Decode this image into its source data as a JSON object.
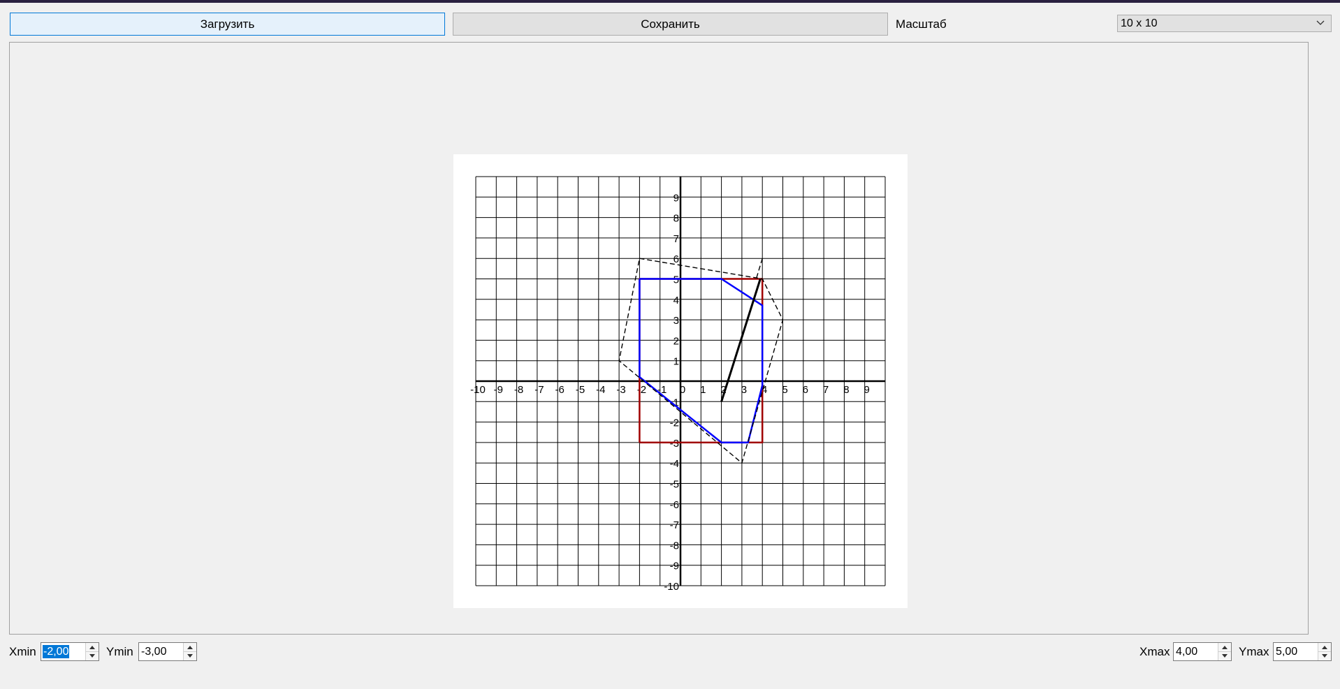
{
  "toolbar": {
    "load_label": "Загрузить",
    "save_label": "Сохранить",
    "scale_label": "Масштаб",
    "scale_value": "10 x 10"
  },
  "bottom": {
    "xmin_label": "Xmin",
    "xmin_value": "-2,00",
    "ymin_label": "Ymin",
    "ymin_value": "-3,00",
    "xmax_label": "Xmax",
    "xmax_value": "4,00",
    "ymax_label": "Ymax",
    "ymax_value": "5,00"
  },
  "chart_data": {
    "type": "line",
    "xlim": [
      -10,
      10
    ],
    "ylim": [
      -10,
      10
    ],
    "grid": true,
    "x_tick_labels": [
      "-10",
      "-9",
      "-8",
      "-7",
      "-6",
      "-5",
      "-4",
      "-3",
      "-2",
      "-1",
      "0",
      "1",
      "2",
      "3",
      "4",
      "5",
      "6",
      "7",
      "8",
      "9"
    ],
    "y_tick_labels": [
      "9",
      "8",
      "7",
      "6",
      "5",
      "4",
      "3",
      "2",
      "1",
      "-1",
      "-2",
      "-3",
      "-4",
      "-5",
      "-6",
      "-7",
      "-8",
      "-9",
      "-10"
    ],
    "series": [
      {
        "style": "solid",
        "color": "#a00000",
        "points": [
          [
            -2,
            -3
          ],
          [
            4,
            -3
          ],
          [
            4,
            5
          ],
          [
            -2,
            5
          ],
          [
            -2,
            -3
          ]
        ]
      },
      {
        "style": "solid",
        "color": "#0000ff",
        "points": [
          [
            -2,
            5
          ],
          [
            2,
            5
          ],
          [
            4,
            3.7
          ],
          [
            4,
            -0.2
          ],
          [
            3.3,
            -3
          ],
          [
            2,
            -3
          ],
          [
            -2,
            0.2
          ],
          [
            -2,
            5
          ]
        ]
      },
      {
        "style": "dashed",
        "color": "#000000",
        "points": [
          [
            -2,
            6
          ],
          [
            4,
            5
          ],
          [
            5,
            3
          ],
          [
            3,
            -4
          ],
          [
            -3,
            1
          ],
          [
            -2,
            6
          ]
        ]
      },
      {
        "style": "dashed",
        "color": "#000000",
        "points": [
          [
            4,
            6
          ],
          [
            3.7,
            5
          ]
        ]
      },
      {
        "style": "solid-bold",
        "color": "#000000",
        "points": [
          [
            2,
            -1
          ],
          [
            3.9,
            5
          ]
        ]
      }
    ]
  }
}
